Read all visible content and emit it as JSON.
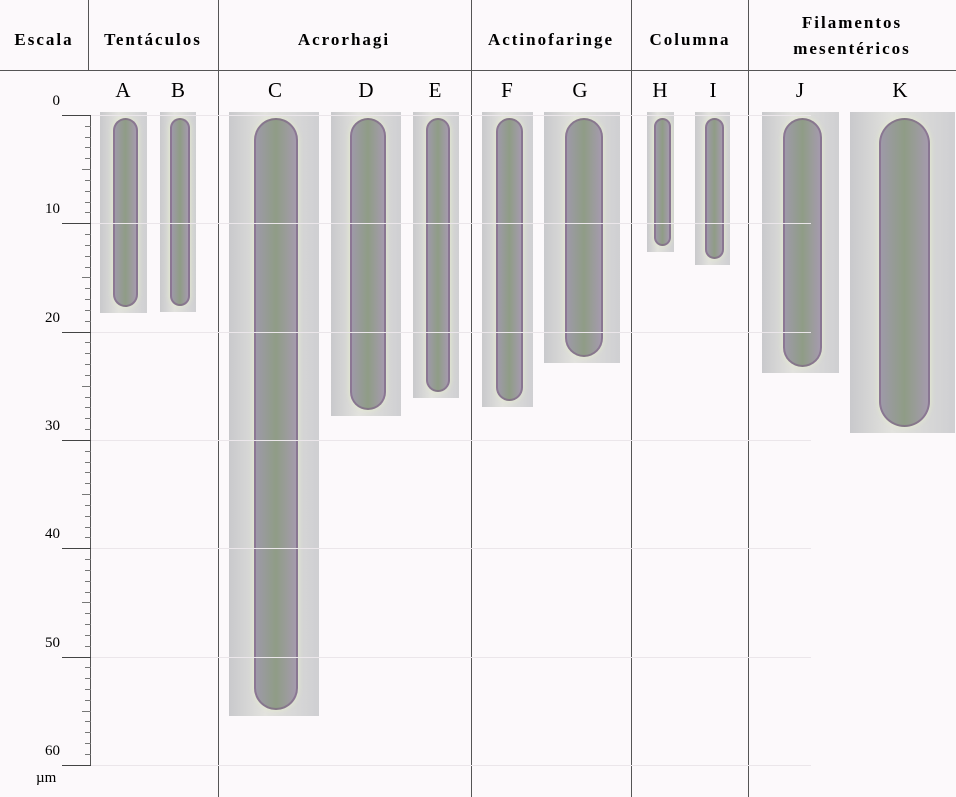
{
  "header": {
    "columns": [
      "Escala",
      "Tentáculos",
      "Acrorhagi",
      "Actinofaringe",
      "Columna",
      "Filamentos mesentéricos"
    ]
  },
  "panels": [
    "A",
    "B",
    "C",
    "D",
    "E",
    "F",
    "G",
    "H",
    "I",
    "J",
    "K"
  ],
  "scale": {
    "ticks": [
      0,
      10,
      20,
      30,
      40,
      50,
      60
    ],
    "unit": "µm"
  }
}
